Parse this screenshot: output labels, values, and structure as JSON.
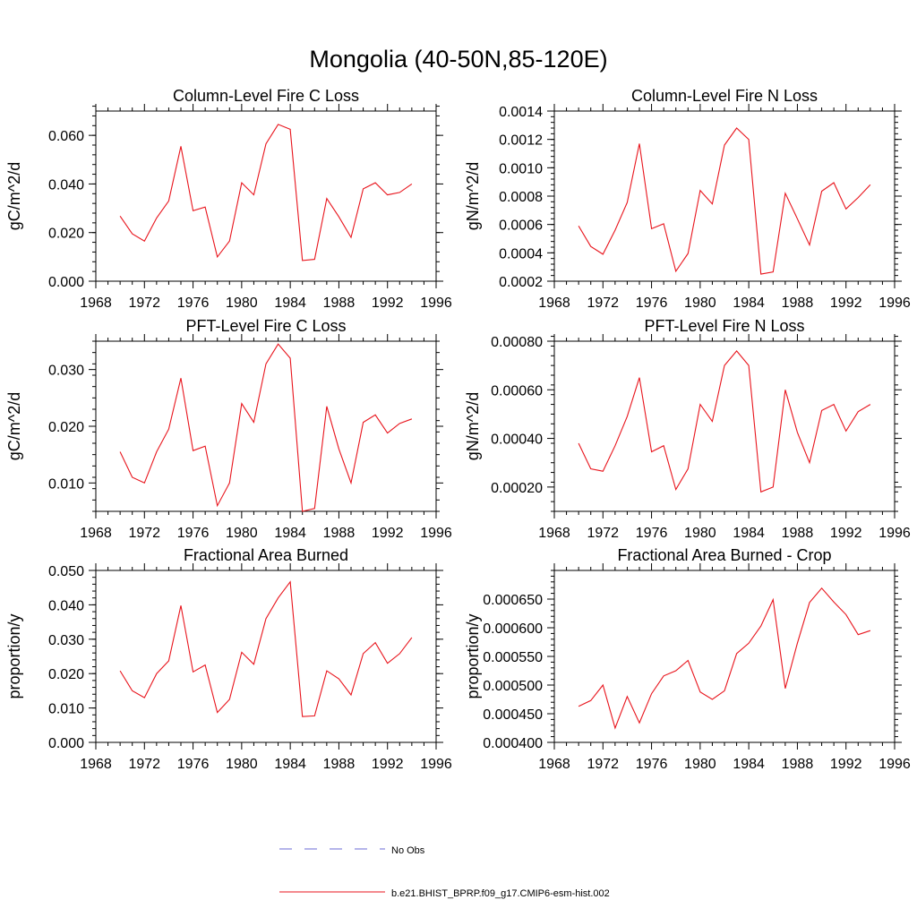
{
  "figure": {
    "title": "Mongolia (40-50N,85-120E)"
  },
  "legend": {
    "position": "bottom",
    "entries": [
      {
        "label": "No Obs",
        "color": "#6b6bd6",
        "style": "dashed"
      },
      {
        "label": "b.e21.BHIST_BPRP.f09_g17.CMIP6-esm-hist.002",
        "color": "#e8141c",
        "style": "solid"
      }
    ]
  },
  "chart_data": [
    {
      "type": "line",
      "title": "Column-Level Fire C Loss",
      "ylabel": "gC/m^2/d",
      "xlim": [
        1968,
        1996
      ],
      "ylim": [
        0.0,
        0.07
      ],
      "xticks": [
        "1968",
        "1972",
        "1976",
        "1980",
        "1984",
        "1988",
        "1992",
        "1996"
      ],
      "yticks": [
        {
          "value": 0.0,
          "label": "0.000"
        },
        {
          "value": 0.02,
          "label": "0.020"
        },
        {
          "value": 0.04,
          "label": "0.040"
        },
        {
          "value": 0.06,
          "label": "0.060"
        }
      ],
      "x": [
        1970,
        1971,
        1972,
        1973,
        1974,
        1975,
        1976,
        1977,
        1978,
        1979,
        1980,
        1981,
        1982,
        1983,
        1984,
        1985,
        1986,
        1987,
        1988,
        1989,
        1990,
        1991,
        1992,
        1993,
        1994
      ],
      "series": [
        {
          "name": "b.e21.BHIST_BPRP.f09_g17.CMIP6-esm-hist.002",
          "color": "#e8141c",
          "values": [
            0.0268,
            0.0195,
            0.0165,
            0.026,
            0.033,
            0.0555,
            0.029,
            0.0305,
            0.01,
            0.0165,
            0.0405,
            0.0355,
            0.0565,
            0.0645,
            0.0625,
            0.0085,
            0.009,
            0.034,
            0.0265,
            0.018,
            0.038,
            0.0405,
            0.0355,
            0.0365,
            0.04
          ]
        }
      ]
    },
    {
      "type": "line",
      "title": "Column-Level Fire N Loss",
      "ylabel": "gN/m^2/d",
      "xlim": [
        1968,
        1996
      ],
      "ylim": [
        0.0002,
        0.0014
      ],
      "xticks": [
        "1968",
        "1972",
        "1976",
        "1980",
        "1984",
        "1988",
        "1992",
        "1996"
      ],
      "yticks": [
        {
          "value": 0.0002,
          "label": "0.0002"
        },
        {
          "value": 0.0004,
          "label": "0.0004"
        },
        {
          "value": 0.0006,
          "label": "0.0006"
        },
        {
          "value": 0.0008,
          "label": "0.0008"
        },
        {
          "value": 0.001,
          "label": "0.0010"
        },
        {
          "value": 0.0012,
          "label": "0.0012"
        },
        {
          "value": 0.0014,
          "label": "0.0014"
        }
      ],
      "x": [
        1970,
        1971,
        1972,
        1973,
        1974,
        1975,
        1976,
        1977,
        1978,
        1979,
        1980,
        1981,
        1982,
        1983,
        1984,
        1985,
        1986,
        1987,
        1988,
        1989,
        1990,
        1991,
        1992,
        1993,
        1994
      ],
      "series": [
        {
          "name": "b.e21.BHIST_BPRP.f09_g17.CMIP6-esm-hist.002",
          "color": "#e8141c",
          "values": [
            0.00059,
            0.000445,
            0.00039,
            0.00056,
            0.000755,
            0.00117,
            0.00057,
            0.000605,
            0.00027,
            0.000395,
            0.00084,
            0.000745,
            0.00116,
            0.00128,
            0.0012,
            0.00025,
            0.000265,
            0.00082,
            0.00064,
            0.000455,
            0.000835,
            0.000895,
            0.00071,
            0.00079,
            0.00088
          ]
        }
      ]
    },
    {
      "type": "line",
      "title": "PFT-Level Fire C Loss",
      "ylabel": "gC/m^2/d",
      "xlim": [
        1968,
        1996
      ],
      "ylim": [
        0.005,
        0.035
      ],
      "xticks": [
        "1968",
        "1972",
        "1976",
        "1980",
        "1984",
        "1988",
        "1992",
        "1996"
      ],
      "yticks": [
        {
          "value": 0.01,
          "label": "0.010"
        },
        {
          "value": 0.02,
          "label": "0.020"
        },
        {
          "value": 0.03,
          "label": "0.030"
        }
      ],
      "x": [
        1970,
        1971,
        1972,
        1973,
        1974,
        1975,
        1976,
        1977,
        1978,
        1979,
        1980,
        1981,
        1982,
        1983,
        1984,
        1985,
        1986,
        1987,
        1988,
        1989,
        1990,
        1991,
        1992,
        1993,
        1994
      ],
      "series": [
        {
          "name": "b.e21.BHIST_BPRP.f09_g17.CMIP6-esm-hist.002",
          "color": "#e8141c",
          "values": [
            0.0155,
            0.011,
            0.01,
            0.0155,
            0.0195,
            0.0285,
            0.0157,
            0.0165,
            0.006,
            0.01,
            0.024,
            0.0207,
            0.031,
            0.0345,
            0.032,
            0.005,
            0.0055,
            0.0235,
            0.016,
            0.01,
            0.0207,
            0.022,
            0.0188,
            0.0205,
            0.0213
          ]
        }
      ]
    },
    {
      "type": "line",
      "title": "PFT-Level Fire N Loss",
      "ylabel": "gN/m^2/d",
      "xlim": [
        1968,
        1996
      ],
      "ylim": [
        0.0001,
        0.0008
      ],
      "xticks": [
        "1968",
        "1972",
        "1976",
        "1980",
        "1984",
        "1988",
        "1992",
        "1996"
      ],
      "yticks": [
        {
          "value": 0.0002,
          "label": "0.00020"
        },
        {
          "value": 0.0004,
          "label": "0.00040"
        },
        {
          "value": 0.0006,
          "label": "0.00060"
        },
        {
          "value": 0.0008,
          "label": "0.00080"
        }
      ],
      "x": [
        1970,
        1971,
        1972,
        1973,
        1974,
        1975,
        1976,
        1977,
        1978,
        1979,
        1980,
        1981,
        1982,
        1983,
        1984,
        1985,
        1986,
        1987,
        1988,
        1989,
        1990,
        1991,
        1992,
        1993,
        1994
      ],
      "series": [
        {
          "name": "b.e21.BHIST_BPRP.f09_g17.CMIP6-esm-hist.002",
          "color": "#e8141c",
          "values": [
            0.00038,
            0.000275,
            0.000265,
            0.00037,
            0.00049,
            0.00065,
            0.000345,
            0.00037,
            0.00019,
            0.000275,
            0.00054,
            0.00047,
            0.0007,
            0.00076,
            0.0007,
            0.00018,
            0.0002,
            0.0006,
            0.000425,
            0.0003,
            0.000515,
            0.00054,
            0.00043,
            0.00051,
            0.00054
          ]
        }
      ]
    },
    {
      "type": "line",
      "title": "Fractional Area Burned",
      "ylabel": "proportion/y",
      "xlim": [
        1968,
        1996
      ],
      "ylim": [
        0.0,
        0.05
      ],
      "xticks": [
        "1968",
        "1972",
        "1976",
        "1980",
        "1984",
        "1988",
        "1992",
        "1996"
      ],
      "yticks": [
        {
          "value": 0.0,
          "label": "0.000"
        },
        {
          "value": 0.01,
          "label": "0.010"
        },
        {
          "value": 0.02,
          "label": "0.020"
        },
        {
          "value": 0.03,
          "label": "0.030"
        },
        {
          "value": 0.04,
          "label": "0.040"
        },
        {
          "value": 0.05,
          "label": "0.050"
        }
      ],
      "x": [
        1970,
        1971,
        1972,
        1973,
        1974,
        1975,
        1976,
        1977,
        1978,
        1979,
        1980,
        1981,
        1982,
        1983,
        1984,
        1985,
        1986,
        1987,
        1988,
        1989,
        1990,
        1991,
        1992,
        1993,
        1994
      ],
      "series": [
        {
          "name": "b.e21.BHIST_BPRP.f09_g17.CMIP6-esm-hist.002",
          "color": "#e8141c",
          "values": [
            0.0208,
            0.015,
            0.013,
            0.02,
            0.0237,
            0.0398,
            0.0205,
            0.0225,
            0.0087,
            0.0125,
            0.0262,
            0.0227,
            0.036,
            0.042,
            0.0467,
            0.0075,
            0.0077,
            0.0208,
            0.0185,
            0.0138,
            0.0258,
            0.029,
            0.023,
            0.0258,
            0.0305
          ]
        }
      ]
    },
    {
      "type": "line",
      "title": "Fractional Area Burned - Crop",
      "ylabel": "proportion/y",
      "xlim": [
        1968,
        1996
      ],
      "ylim": [
        0.0004,
        0.0007
      ],
      "xticks": [
        "1968",
        "1972",
        "1976",
        "1980",
        "1984",
        "1988",
        "1992",
        "1996"
      ],
      "yticks": [
        {
          "value": 0.0004,
          "label": "0.000400"
        },
        {
          "value": 0.00045,
          "label": "0.000450"
        },
        {
          "value": 0.0005,
          "label": "0.000500"
        },
        {
          "value": 0.00055,
          "label": "0.000550"
        },
        {
          "value": 0.0006,
          "label": "0.000600"
        },
        {
          "value": 0.00065,
          "label": "0.000650"
        }
      ],
      "x": [
        1970,
        1971,
        1972,
        1973,
        1974,
        1975,
        1976,
        1977,
        1978,
        1979,
        1980,
        1981,
        1982,
        1983,
        1984,
        1985,
        1986,
        1987,
        1988,
        1989,
        1990,
        1991,
        1992,
        1993,
        1994
      ],
      "series": [
        {
          "name": "b.e21.BHIST_BPRP.f09_g17.CMIP6-esm-hist.002",
          "color": "#e8141c",
          "values": [
            0.000463,
            0.000473,
            0.0005,
            0.000425,
            0.00048,
            0.000434,
            0.000485,
            0.000516,
            0.000525,
            0.000543,
            0.000488,
            0.000475,
            0.00049,
            0.000555,
            0.000573,
            0.000603,
            0.000649,
            0.000494,
            0.000573,
            0.000644,
            0.000669,
            0.000645,
            0.000623,
            0.000588,
            0.000595
          ]
        }
      ]
    }
  ]
}
